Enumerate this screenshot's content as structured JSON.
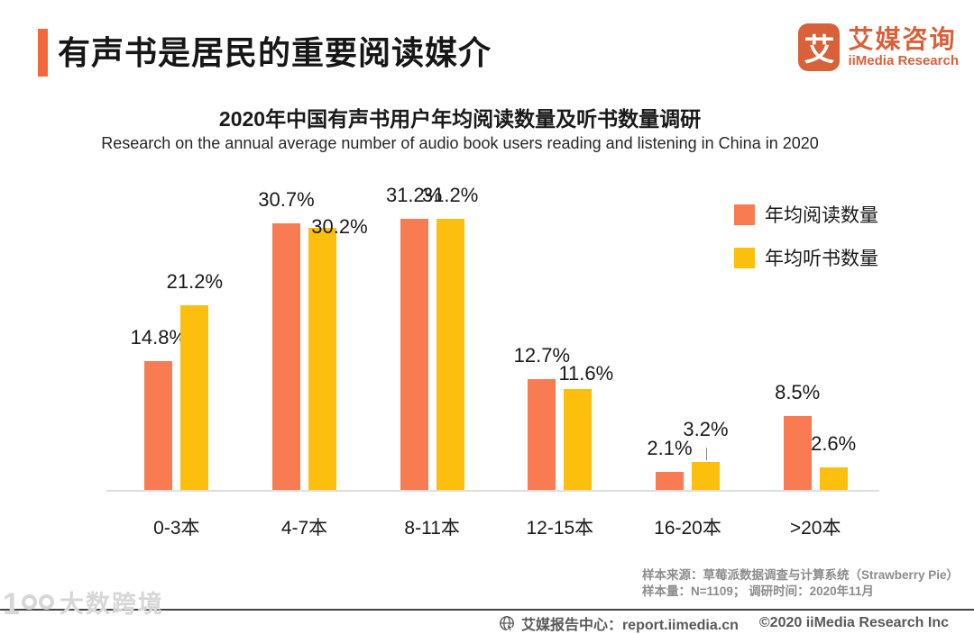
{
  "header": {
    "title": "有声书是居民的重要阅读媒介",
    "logo": {
      "mark_glyph": "艾",
      "name_cn": "艾媒咨询",
      "name_en": "iiMedia Research"
    }
  },
  "theme": {
    "accent_orange": "#F2683A",
    "brand_orange": "#D8613A",
    "axis_gray": "#DEDEDE"
  },
  "chart_data": {
    "type": "bar",
    "title": "2020年中国有声书用户年均阅读数量及听书数量调研",
    "subtitle": "Research on the annual average number of audio book users reading and listening in China in 2020",
    "categories": [
      "0-3本",
      "4-7本",
      "8-11本",
      "12-15本",
      "16-20本",
      ">20本"
    ],
    "series": [
      {
        "name": "年均阅读数量",
        "color": "#F97B51",
        "values": [
          14.8,
          30.7,
          31.2,
          12.7,
          2.1,
          8.5
        ]
      },
      {
        "name": "年均听书数量",
        "color": "#FDBF0E",
        "values": [
          21.2,
          30.2,
          31.2,
          11.6,
          3.2,
          2.6
        ]
      }
    ],
    "value_suffix": "%",
    "ylim": [
      0,
      32
    ],
    "grid": false,
    "legend_position": "top-right",
    "value_labels": true
  },
  "footer": {
    "source_line1": "样本来源：草莓派数据调查与计算系统（Strawberry Pie）",
    "source_line2": "样本量：N=1109；  调研时间：2020年11月",
    "report_center": "艾媒报告中心：report.iimedia.cn",
    "copyright": "©2020  iiMedia Research  Inc"
  },
  "watermark": {
    "brand": "大数跨境"
  }
}
